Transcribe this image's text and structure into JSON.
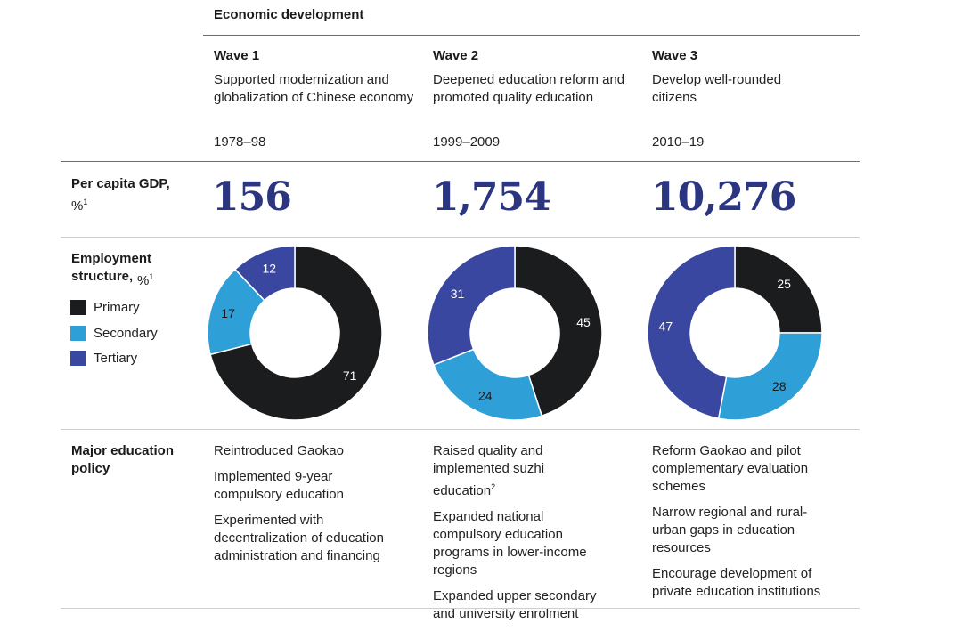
{
  "header": {
    "title": "Economic development"
  },
  "waves": [
    {
      "title": "Wave 1",
      "description": "Supported modernization and globalization of Chinese economy",
      "years": "1978–98"
    },
    {
      "title": "Wave 2",
      "description": "Deepened education reform and promoted quality education",
      "years": "1999–2009"
    },
    {
      "title": "Wave 3",
      "description": "Develop well-rounded citizens",
      "years": "2010–19"
    }
  ],
  "gdp": {
    "label": "Per capita GDP,",
    "unit": "%",
    "footnote": "1",
    "values": [
      "156",
      "1,754",
      "10,276"
    ]
  },
  "employment": {
    "label": "Employment structure,",
    "unit": "%",
    "footnote": "1",
    "legend": [
      {
        "name": "Primary",
        "color": "#1b1c1e"
      },
      {
        "name": "Secondary",
        "color": "#2f9fd8"
      },
      {
        "name": "Tertiary",
        "color": "#3a47a0"
      }
    ]
  },
  "chart_data": [
    {
      "type": "pie",
      "title": "Wave 1 employment structure",
      "categories": [
        "Primary",
        "Secondary",
        "Tertiary"
      ],
      "values": [
        71,
        17,
        12
      ],
      "unit": "%"
    },
    {
      "type": "pie",
      "title": "Wave 2 employment structure",
      "categories": [
        "Primary",
        "Secondary",
        "Tertiary"
      ],
      "values": [
        45,
        24,
        31
      ],
      "unit": "%"
    },
    {
      "type": "pie",
      "title": "Wave 3 employment structure",
      "categories": [
        "Primary",
        "Secondary",
        "Tertiary"
      ],
      "values": [
        25,
        28,
        47
      ],
      "unit": "%"
    }
  ],
  "policy": {
    "label": "Major education policy",
    "columns": [
      {
        "items": [
          {
            "text": "Reintroduced Gaokao"
          },
          {
            "text": "Implemented 9-year compulsory education"
          },
          {
            "text": "Experimented with decentralization of education administration and financing"
          }
        ]
      },
      {
        "items": [
          {
            "text": "Raised quality and implemented suzhi education",
            "sup": "2"
          },
          {
            "text": "Expanded national compulsory education programs in lower-income regions"
          },
          {
            "text": "Expanded upper secondary and university enrolment"
          }
        ]
      },
      {
        "items": [
          {
            "text": "Reform Gaokao and pilot complementary evaluation schemes"
          },
          {
            "text": "Narrow regional and rural-urban gaps in education resources"
          },
          {
            "text": "Encourage development of private education institutions"
          }
        ]
      }
    ]
  }
}
